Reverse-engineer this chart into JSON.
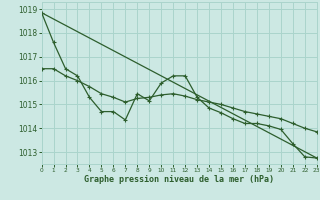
{
  "title": "Graphe pression niveau de la mer (hPa)",
  "bg": "#cce8e3",
  "grid_color": "#aad4cc",
  "lc": "#2d5e2d",
  "xlim": [
    0,
    23
  ],
  "ylim": [
    1012.5,
    1019.3
  ],
  "yticks": [
    1013,
    1014,
    1015,
    1016,
    1017,
    1018,
    1019
  ],
  "xticks": [
    0,
    1,
    2,
    3,
    4,
    5,
    6,
    7,
    8,
    9,
    10,
    11,
    12,
    13,
    14,
    15,
    16,
    17,
    18,
    19,
    20,
    21,
    22,
    23
  ],
  "line1_y": [
    1018.85,
    1017.6,
    1016.5,
    1016.2,
    1015.3,
    1014.7,
    1014.7,
    1014.35,
    1015.45,
    1015.15,
    1015.9,
    1016.2,
    1016.2,
    1015.3,
    1014.85,
    1014.65,
    1014.4,
    1014.2,
    1014.2,
    1014.1,
    1013.95,
    1013.35,
    1012.8,
    1012.75
  ],
  "line2_y": [
    1016.5,
    1016.5,
    1016.2,
    1016.0,
    1015.75,
    1015.45,
    1015.3,
    1015.1,
    1015.25,
    1015.3,
    1015.4,
    1015.45,
    1015.35,
    1015.2,
    1015.1,
    1015.0,
    1014.85,
    1014.7,
    1014.6,
    1014.5,
    1014.4,
    1014.2,
    1014.0,
    1013.85
  ],
  "linear_y0": 1018.85,
  "linear_y1": 1012.75,
  "title_fontsize": 6.0,
  "ytick_fontsize": 5.5,
  "xtick_fontsize": 4.2,
  "lw": 0.9,
  "ms": 2.5
}
